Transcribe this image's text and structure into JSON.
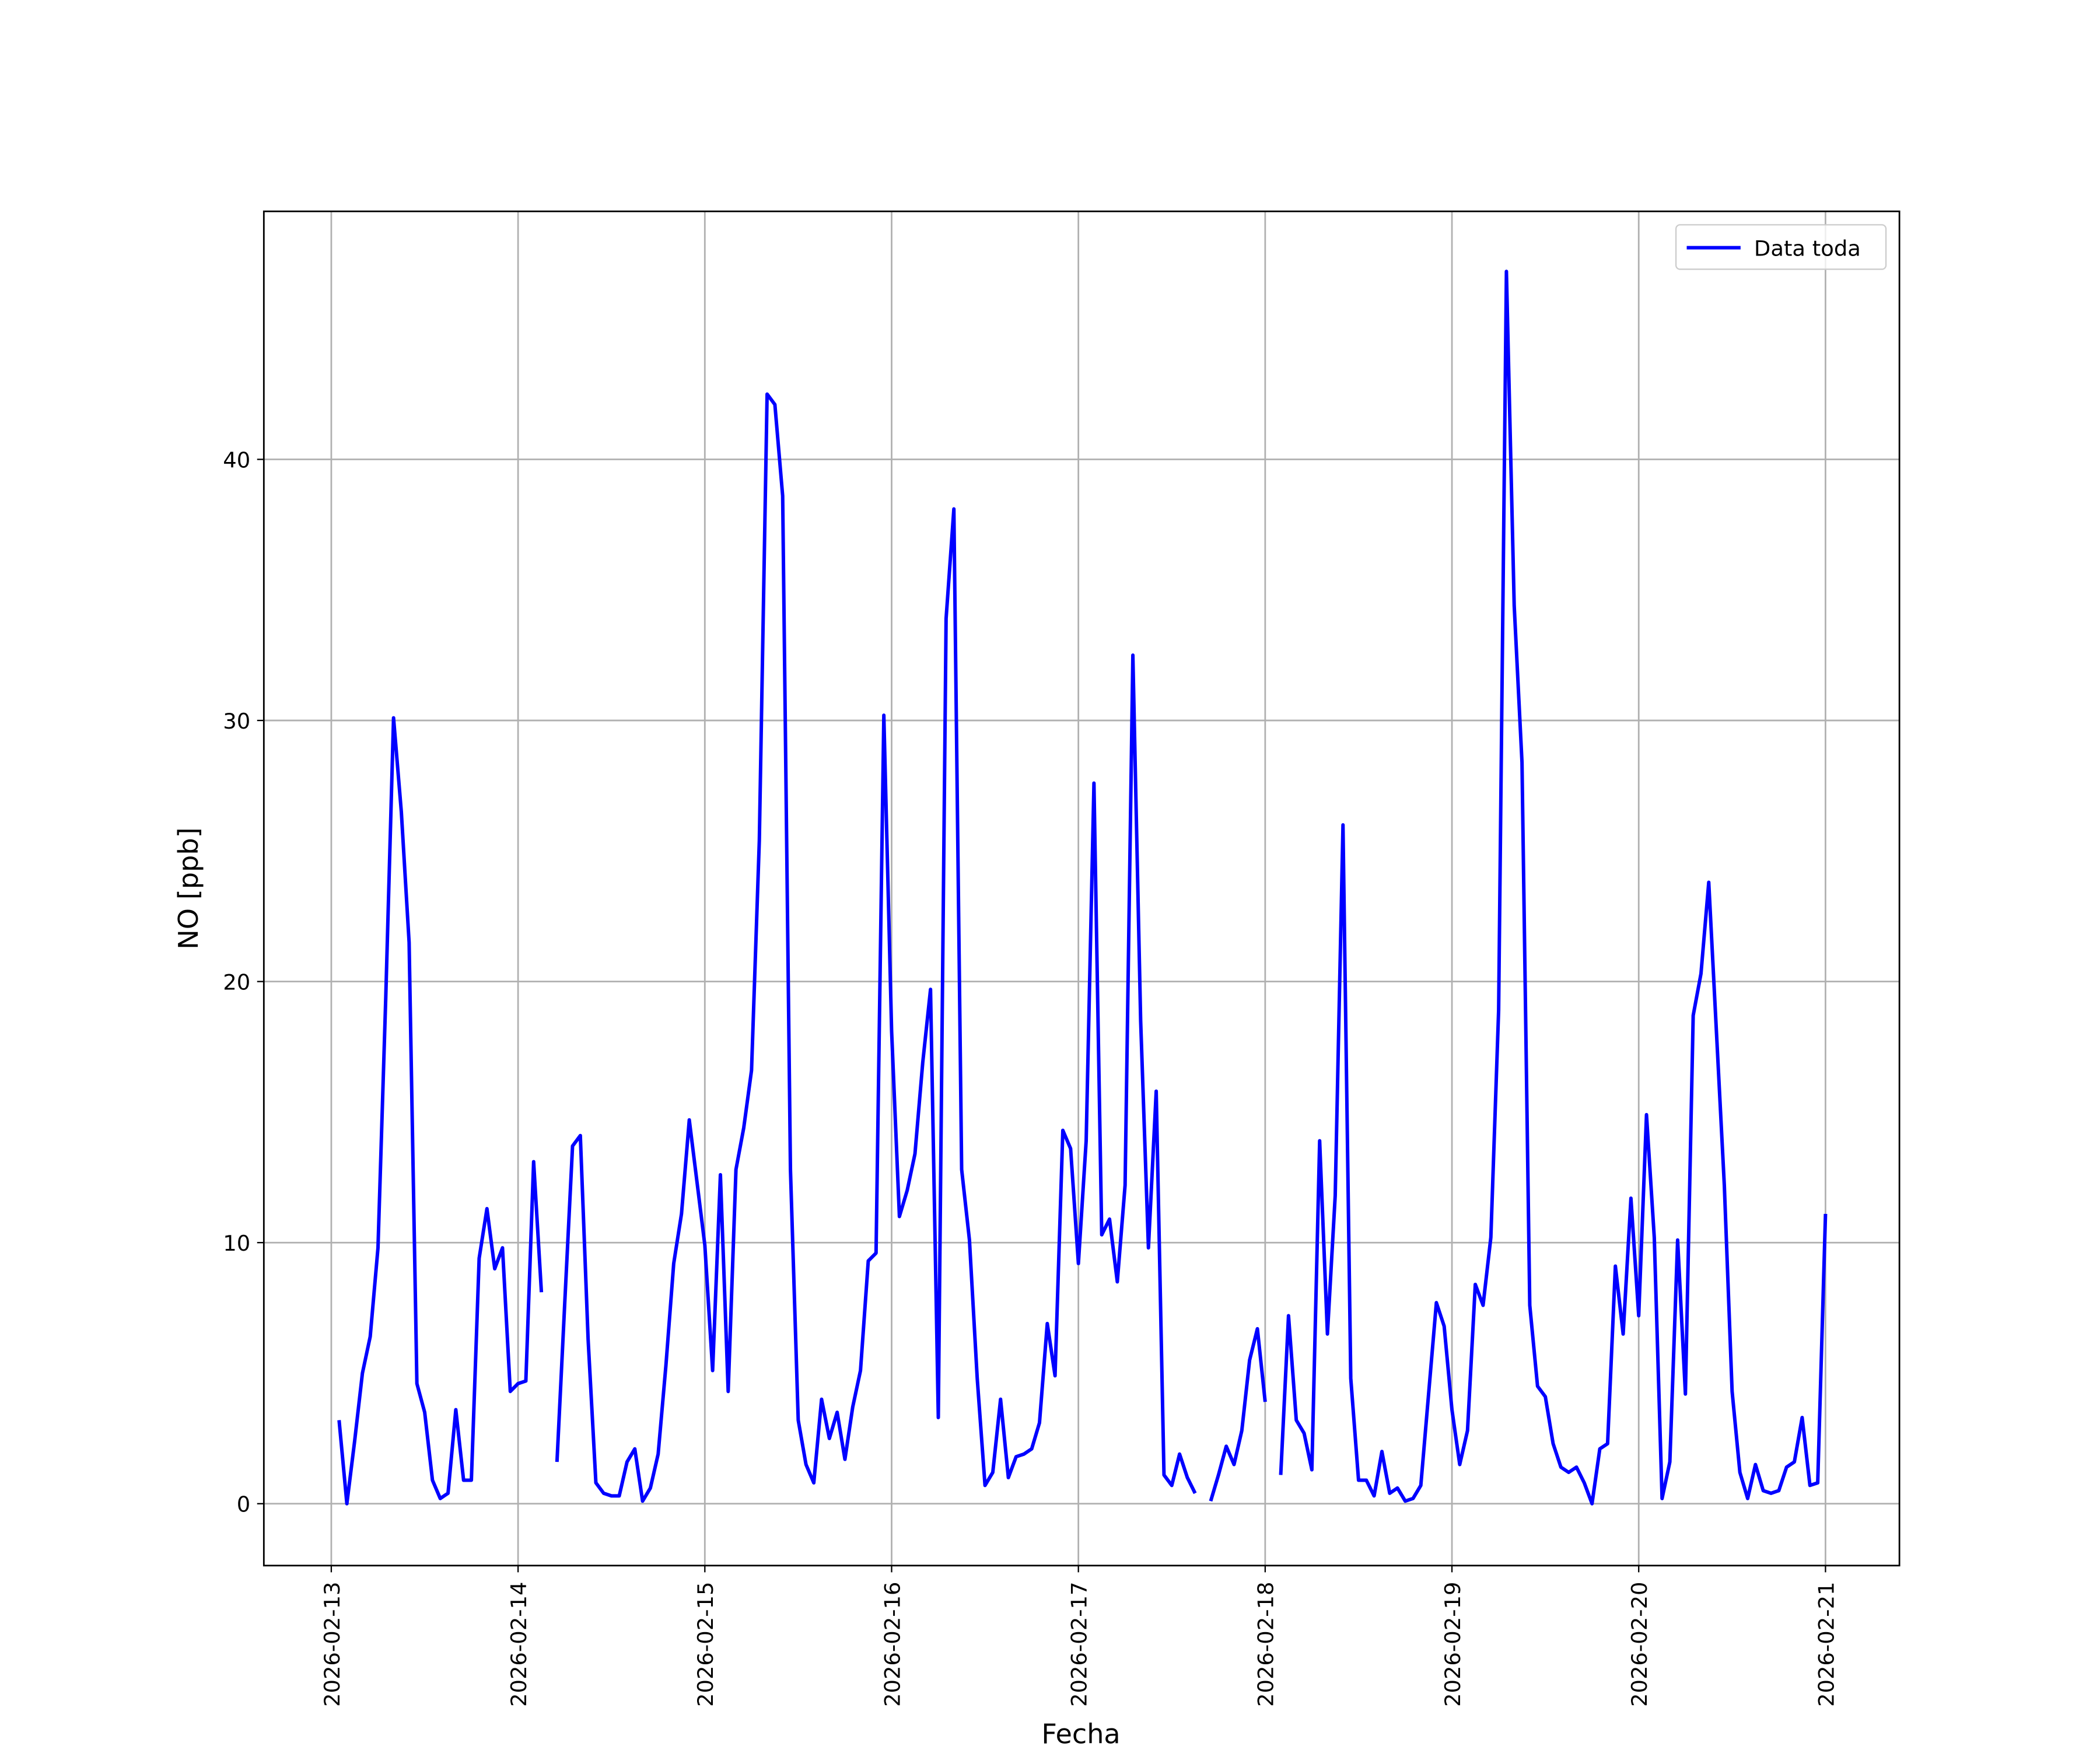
{
  "chart_data": {
    "type": "line",
    "xlabel": "Fecha",
    "ylabel": "NO [ppb]",
    "x": [
      "2026-02-13T01:00",
      "2026-02-13T02:00",
      "2026-02-13T03:00",
      "2026-02-13T04:00",
      "2026-02-13T05:00",
      "2026-02-13T06:00",
      "2026-02-13T07:00",
      "2026-02-13T08:00",
      "2026-02-13T09:00",
      "2026-02-13T10:00",
      "2026-02-13T11:00",
      "2026-02-13T12:00",
      "2026-02-13T13:00",
      "2026-02-13T14:00",
      "2026-02-13T15:00",
      "2026-02-13T16:00",
      "2026-02-13T17:00",
      "2026-02-13T18:00",
      "2026-02-13T19:00",
      "2026-02-13T20:00",
      "2026-02-13T21:00",
      "2026-02-13T22:00",
      "2026-02-13T23:00",
      "2026-02-14T00:00",
      "2026-02-14T01:00",
      "2026-02-14T02:00",
      "2026-02-14T03:00",
      "2026-02-14T04:00",
      "2026-02-14T05:00",
      "2026-02-14T06:00",
      "2026-02-14T07:00",
      "2026-02-14T08:00",
      "2026-02-14T09:00",
      "2026-02-14T10:00",
      "2026-02-14T11:00",
      "2026-02-14T12:00",
      "2026-02-14T13:00",
      "2026-02-14T14:00",
      "2026-02-14T15:00",
      "2026-02-14T16:00",
      "2026-02-14T17:00",
      "2026-02-14T18:00",
      "2026-02-14T19:00",
      "2026-02-14T20:00",
      "2026-02-14T21:00",
      "2026-02-14T22:00",
      "2026-02-14T23:00",
      "2026-02-15T00:00",
      "2026-02-15T01:00",
      "2026-02-15T02:00",
      "2026-02-15T03:00",
      "2026-02-15T04:00",
      "2026-02-15T05:00",
      "2026-02-15T06:00",
      "2026-02-15T07:00",
      "2026-02-15T08:00",
      "2026-02-15T09:00",
      "2026-02-15T10:00",
      "2026-02-15T11:00",
      "2026-02-15T12:00",
      "2026-02-15T13:00",
      "2026-02-15T14:00",
      "2026-02-15T15:00",
      "2026-02-15T16:00",
      "2026-02-15T17:00",
      "2026-02-15T18:00",
      "2026-02-15T19:00",
      "2026-02-15T20:00",
      "2026-02-15T21:00",
      "2026-02-15T22:00",
      "2026-02-15T23:00",
      "2026-02-16T00:00",
      "2026-02-16T01:00",
      "2026-02-16T02:00",
      "2026-02-16T03:00",
      "2026-02-16T04:00",
      "2026-02-16T05:00",
      "2026-02-16T06:00",
      "2026-02-16T07:00",
      "2026-02-16T08:00",
      "2026-02-16T09:00",
      "2026-02-16T10:00",
      "2026-02-16T11:00",
      "2026-02-16T12:00",
      "2026-02-16T13:00",
      "2026-02-16T14:00",
      "2026-02-16T15:00",
      "2026-02-16T16:00",
      "2026-02-16T17:00",
      "2026-02-16T18:00",
      "2026-02-16T19:00",
      "2026-02-16T20:00",
      "2026-02-16T21:00",
      "2026-02-16T22:00",
      "2026-02-16T23:00",
      "2026-02-17T00:00",
      "2026-02-17T01:00",
      "2026-02-17T02:00",
      "2026-02-17T03:00",
      "2026-02-17T04:00",
      "2026-02-17T05:00",
      "2026-02-17T06:00",
      "2026-02-17T07:00",
      "2026-02-17T08:00",
      "2026-02-17T09:00",
      "2026-02-17T10:00",
      "2026-02-17T11:00",
      "2026-02-17T12:00",
      "2026-02-17T13:00",
      "2026-02-17T14:00",
      "2026-02-17T15:00",
      "2026-02-17T16:00",
      "2026-02-17T17:00",
      "2026-02-17T18:00",
      "2026-02-17T19:00",
      "2026-02-17T20:00",
      "2026-02-17T21:00",
      "2026-02-17T22:00",
      "2026-02-17T23:00",
      "2026-02-18T00:00",
      "2026-02-18T01:00",
      "2026-02-18T02:00",
      "2026-02-18T03:00",
      "2026-02-18T04:00",
      "2026-02-18T05:00",
      "2026-02-18T06:00",
      "2026-02-18T07:00",
      "2026-02-18T08:00",
      "2026-02-18T09:00",
      "2026-02-18T10:00",
      "2026-02-18T11:00",
      "2026-02-18T12:00",
      "2026-02-18T13:00",
      "2026-02-18T14:00",
      "2026-02-18T15:00",
      "2026-02-18T16:00",
      "2026-02-18T17:00",
      "2026-02-18T18:00",
      "2026-02-18T19:00",
      "2026-02-18T20:00",
      "2026-02-18T21:00",
      "2026-02-18T22:00",
      "2026-02-18T23:00",
      "2026-02-19T00:00",
      "2026-02-19T01:00",
      "2026-02-19T02:00",
      "2026-02-19T03:00",
      "2026-02-19T04:00",
      "2026-02-19T05:00",
      "2026-02-19T06:00",
      "2026-02-19T07:00",
      "2026-02-19T08:00",
      "2026-02-19T09:00",
      "2026-02-19T10:00",
      "2026-02-19T11:00",
      "2026-02-19T12:00",
      "2026-02-19T13:00",
      "2026-02-19T14:00",
      "2026-02-19T15:00",
      "2026-02-19T16:00",
      "2026-02-19T17:00",
      "2026-02-19T18:00",
      "2026-02-19T19:00",
      "2026-02-19T20:00",
      "2026-02-19T21:00",
      "2026-02-19T22:00",
      "2026-02-19T23:00",
      "2026-02-20T00:00",
      "2026-02-20T01:00",
      "2026-02-20T02:00",
      "2026-02-20T03:00",
      "2026-02-20T04:00",
      "2026-02-20T05:00",
      "2026-02-20T06:00",
      "2026-02-20T07:00",
      "2026-02-20T08:00",
      "2026-02-20T09:00",
      "2026-02-20T10:00",
      "2026-02-20T11:00",
      "2026-02-20T12:00",
      "2026-02-20T13:00",
      "2026-02-20T14:00",
      "2026-02-20T15:00",
      "2026-02-20T16:00",
      "2026-02-20T17:00",
      "2026-02-20T18:00",
      "2026-02-20T19:00",
      "2026-02-20T20:00",
      "2026-02-20T21:00",
      "2026-02-20T22:00",
      "2026-02-20T23:00",
      "2026-02-21T00:00"
    ],
    "series": [
      {
        "name": "Data toda",
        "color": "#0000ff",
        "values": [
          3.2,
          0,
          2.4,
          5.0,
          6.4,
          9.8,
          19.4,
          30.1,
          26.5,
          21.5,
          4.6,
          3.5,
          0.9,
          0.2,
          0.4,
          3.6,
          0.9,
          0.9,
          9.4,
          11.3,
          9.0,
          9.8,
          4.3,
          4.6,
          4.7,
          13.1,
          8.1,
          null,
          1.6,
          7.7,
          13.7,
          14.1,
          6.3,
          0.8,
          0.4,
          0.3,
          0.3,
          1.6,
          2.1,
          0.1,
          0.6,
          1.9,
          5.3,
          9.2,
          11.1,
          14.7,
          12.3,
          9.9,
          5.1,
          12.6,
          4.3,
          12.8,
          14.4,
          16.6,
          25.4,
          42.5,
          42.1,
          38.6,
          12.8,
          3.2,
          1.5,
          0.8,
          4.0,
          2.5,
          3.5,
          1.7,
          3.7,
          5.1,
          9.3,
          9.6,
          30.2,
          18.1,
          11.0,
          12.0,
          13.4,
          16.9,
          19.7,
          3.3,
          33.9,
          38.1,
          12.8,
          10.1,
          4.8,
          0.7,
          1.2,
          4.0,
          1.0,
          1.8,
          1.9,
          2.1,
          3.1,
          6.9,
          4.9,
          14.3,
          13.6,
          9.2,
          13.9,
          27.6,
          10.3,
          10.9,
          8.5,
          12.2,
          32.5,
          18.5,
          9.8,
          15.8,
          1.1,
          0.7,
          1.9,
          1.0,
          0.4,
          null,
          0.1,
          1.1,
          2.2,
          1.5,
          2.8,
          5.5,
          6.7,
          3.9,
          null,
          1.1,
          7.2,
          3.2,
          2.7,
          1.3,
          13.9,
          6.5,
          11.8,
          26.0,
          4.8,
          0.9,
          0.9,
          0.3,
          2.0,
          0.4,
          0.6,
          0.1,
          0.2,
          0.7,
          4.2,
          7.7,
          6.8,
          3.6,
          1.5,
          2.8,
          8.4,
          7.6,
          10.2,
          18.9,
          47.2,
          34.4,
          28.4,
          7.6,
          4.5,
          4.1,
          2.3,
          1.4,
          1.2,
          1.4,
          0.8,
          0,
          2.1,
          2.3,
          9.1,
          6.5,
          11.7,
          7.2,
          14.9,
          10.2,
          0.2,
          1.6,
          10.1,
          4.2,
          18.7,
          20.3,
          23.8,
          18.0,
          12.2,
          4.3,
          1.2,
          0.2,
          1.5,
          0.5,
          0.4,
          0.5,
          1.4,
          1.6,
          3.3,
          0.7,
          0.8,
          11.1
        ]
      }
    ],
    "xlim": [
      "2026-02-12T15:20",
      "2026-02-21T09:30"
    ],
    "xticks": [
      "2026-02-13",
      "2026-02-14",
      "2026-02-15",
      "2026-02-16",
      "2026-02-17",
      "2026-02-18",
      "2026-02-19",
      "2026-02-20",
      "2026-02-21"
    ],
    "ylim": [
      -2.37,
      49.5
    ],
    "yticks": [
      0,
      10,
      20,
      30,
      40
    ],
    "grid": true,
    "legend": "upper right"
  }
}
